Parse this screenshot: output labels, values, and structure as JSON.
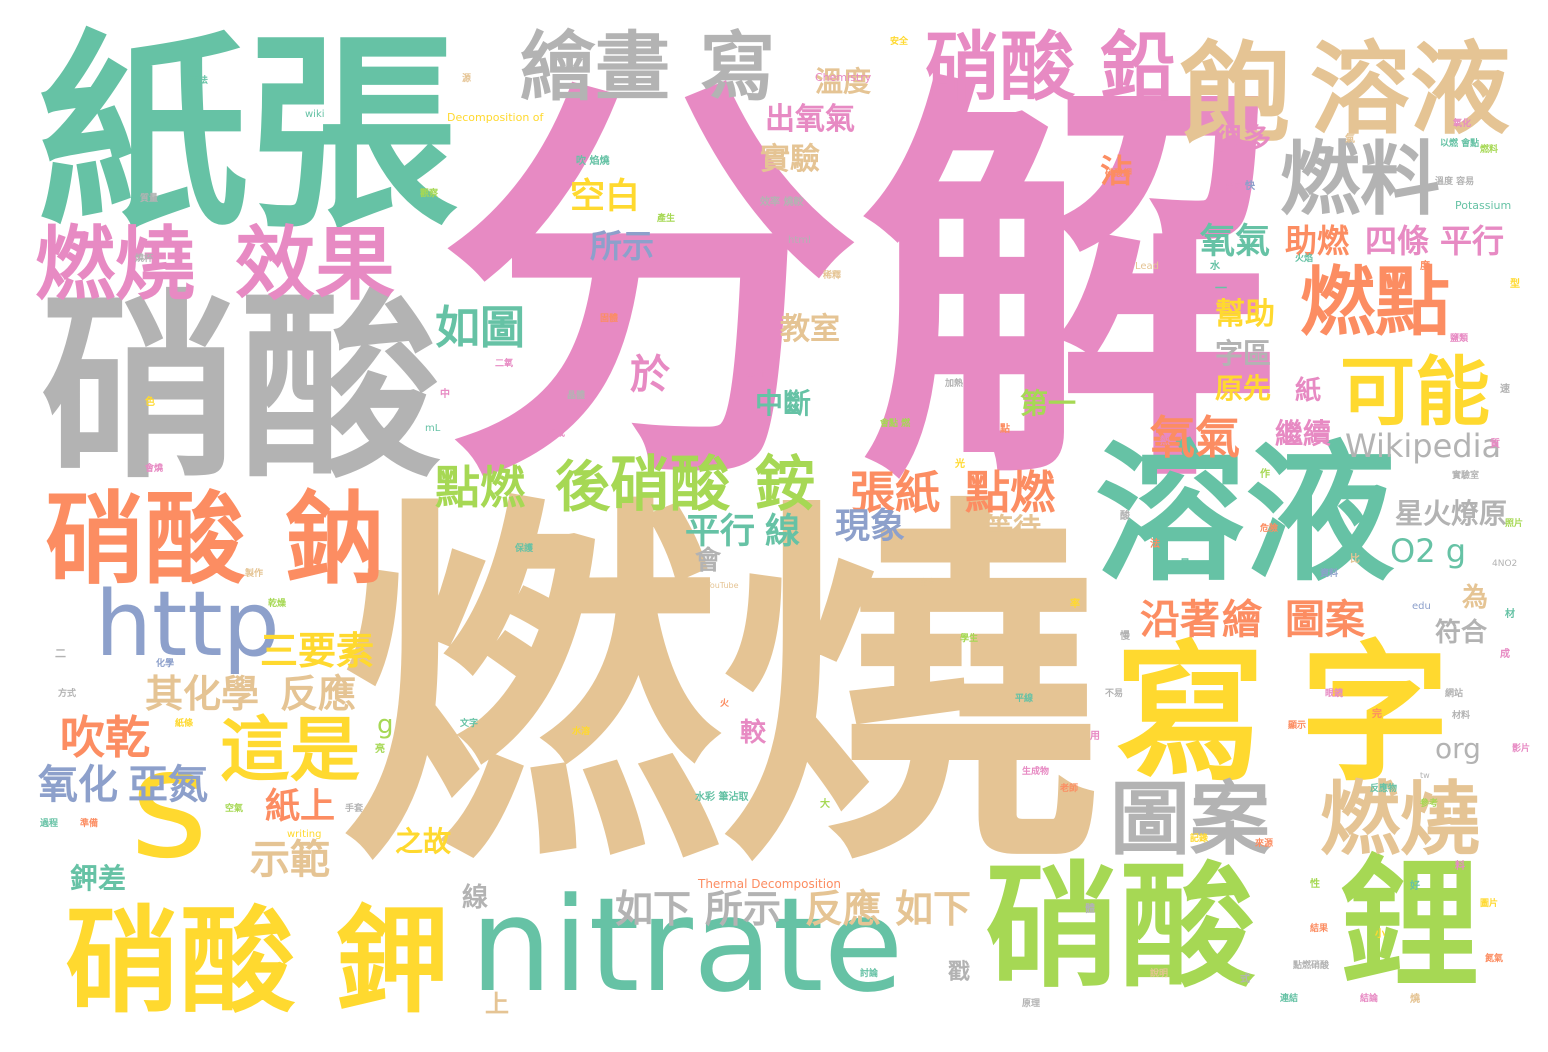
{
  "palette": {
    "pink": "#e78ac3",
    "tan": "#e5c494",
    "green": "#66c2a5",
    "gray": "#b3b3b3",
    "orange": "#fc8d62",
    "yellow": "#ffd92f",
    "lime": "#a6d854",
    "blue": "#8da0cb"
  },
  "words": [
    {
      "text": "分解",
      "color": "#e78ac3"
    },
    {
      "text": "燃燒",
      "color": "#e5c494"
    },
    {
      "text": "紙張",
      "color": "#66c2a5"
    },
    {
      "text": "硝酸",
      "color": "#b3b3b3"
    },
    {
      "text": "溶液",
      "color": "#66c2a5"
    },
    {
      "text": "寫",
      "color": "#ffd92f"
    },
    {
      "text": "字",
      "color": "#ffd92f"
    },
    {
      "text": "nitrate",
      "color": "#66c2a5"
    },
    {
      "text": "硝酸",
      "color": "#a6d854"
    },
    {
      "text": "鋰",
      "color": "#a6d854"
    },
    {
      "text": "硝酸",
      "color": "#ffd92f"
    },
    {
      "text": "鉀",
      "color": "#ffd92f"
    },
    {
      "text": "硝酸",
      "color": "#fc8d62"
    },
    {
      "text": "鈉",
      "color": "#fc8d62"
    },
    {
      "text": "s",
      "color": "#ffd92f"
    },
    {
      "text": "http",
      "color": "#8da0cb"
    },
    {
      "text": "燃燒",
      "color": "#e78ac3"
    },
    {
      "text": "效果",
      "color": "#e78ac3"
    },
    {
      "text": "繪畫",
      "color": "#b3b3b3"
    },
    {
      "text": "寫",
      "color": "#b3b3b3"
    },
    {
      "text": "硝酸",
      "color": "#e78ac3"
    },
    {
      "text": "鉛",
      "color": "#e78ac3"
    },
    {
      "text": "飽",
      "color": "#e5c494"
    },
    {
      "text": "溶液",
      "color": "#e5c494"
    },
    {
      "text": "燃料",
      "color": "#b3b3b3"
    },
    {
      "text": "燃點",
      "color": "#fc8d62"
    },
    {
      "text": "可能",
      "color": "#ffd92f"
    },
    {
      "text": "圖案",
      "color": "#b3b3b3"
    },
    {
      "text": "燃燒",
      "color": "#e5c494"
    },
    {
      "text": "這是",
      "color": "#ffd92f"
    },
    {
      "text": "後",
      "color": "#a6d854"
    },
    {
      "text": "硝酸",
      "color": "#a6d854"
    },
    {
      "text": "銨",
      "color": "#a6d854"
    },
    {
      "text": "點燃",
      "color": "#a6d854"
    },
    {
      "text": "張紙",
      "color": "#fc8d62"
    },
    {
      "text": "點燃",
      "color": "#fc8d62"
    },
    {
      "text": "沿著",
      "color": "#fc8d62"
    },
    {
      "text": "繪",
      "color": "#fc8d62"
    },
    {
      "text": "圖案",
      "color": "#fc8d62"
    },
    {
      "text": "氧氣",
      "color": "#fc8d62"
    },
    {
      "text": "如圖",
      "color": "#66c2a5"
    },
    {
      "text": "於",
      "color": "#e78ac3"
    },
    {
      "text": "吹乾",
      "color": "#fc8d62"
    },
    {
      "text": "氧化",
      "color": "#8da0cb"
    },
    {
      "text": "亞氮",
      "color": "#8da0cb"
    },
    {
      "text": "三要素",
      "color": "#ffd92f"
    },
    {
      "text": "其化學",
      "color": "#e5c494"
    },
    {
      "text": "反應",
      "color": "#e5c494"
    },
    {
      "text": "示範",
      "color": "#e5c494"
    },
    {
      "text": "紙上",
      "color": "#fc8d62"
    },
    {
      "text": "如下",
      "color": "#b3b3b3"
    },
    {
      "text": "所示",
      "color": "#b3b3b3"
    },
    {
      "text": "反應",
      "color": "#e5c494"
    },
    {
      "text": "如下",
      "color": "#e5c494"
    },
    {
      "text": "平行",
      "color": "#66c2a5"
    },
    {
      "text": "線",
      "color": "#66c2a5"
    },
    {
      "text": "現象",
      "color": "#8da0cb"
    },
    {
      "text": "O2 g",
      "color": "#66c2a5"
    },
    {
      "text": "Wikipedia",
      "color": "#b3b3b3"
    },
    {
      "text": "氧氣",
      "color": "#66c2a5"
    },
    {
      "text": "助燃",
      "color": "#fc8d62"
    },
    {
      "text": "四條",
      "color": "#e78ac3"
    },
    {
      "text": "平行",
      "color": "#e78ac3"
    },
    {
      "text": "空白",
      "color": "#ffd92f"
    },
    {
      "text": "所示",
      "color": "#8da0cb"
    },
    {
      "text": "實驗",
      "color": "#e5c494"
    },
    {
      "text": "出氧氣",
      "color": "#e78ac3"
    },
    {
      "text": "溫度",
      "color": "#e5c494"
    },
    {
      "text": "沾",
      "color": "#fc8d62"
    },
    {
      "text": "幫助",
      "color": "#ffd92f"
    },
    {
      "text": "教室",
      "color": "#e5c494"
    },
    {
      "text": "中斷",
      "color": "#66c2a5"
    },
    {
      "text": "第一",
      "color": "#a6d854"
    },
    {
      "text": "繼續",
      "color": "#e78ac3"
    },
    {
      "text": "原先",
      "color": "#ffd92f"
    },
    {
      "text": "字區",
      "color": "#b3b3b3"
    },
    {
      "text": "很多",
      "color": "#e78ac3"
    },
    {
      "text": "等待",
      "color": "#e5c494"
    },
    {
      "text": "星火燎原",
      "color": "#b3b3b3"
    },
    {
      "text": "符合",
      "color": "#b3b3b3"
    },
    {
      "text": "之故",
      "color": "#ffd92f"
    },
    {
      "text": "鉀差",
      "color": "#66c2a5"
    },
    {
      "text": "org",
      "color": "#b3b3b3"
    },
    {
      "text": "為",
      "color": "#e5c494"
    },
    {
      "text": "會",
      "color": "#b3b3b3"
    },
    {
      "text": "紙",
      "color": "#e78ac3"
    },
    {
      "text": "較",
      "color": "#e78ac3"
    },
    {
      "text": "線",
      "color": "#b3b3b3"
    },
    {
      "text": "戳",
      "color": "#b3b3b3"
    },
    {
      "text": "上",
      "color": "#e5c494"
    },
    {
      "text": "g",
      "color": "#a6d854"
    },
    {
      "text": "Chemistry",
      "color": "#e78ac3"
    },
    {
      "text": "Decomposition of",
      "color": "#ffd92f"
    },
    {
      "text": "Thermal Decomposition",
      "color": "#fc8d62"
    },
    {
      "text": "Potassium",
      "color": "#66c2a5"
    },
    {
      "text": "Lead",
      "color": "#e5c494"
    },
    {
      "text": "Classic",
      "color": "#e78ac3"
    },
    {
      "text": "html",
      "color": "#b3b3b3"
    },
    {
      "text": "wiki",
      "color": "#66c2a5"
    },
    {
      "text": "writing",
      "color": "#ffd92f"
    },
    {
      "text": "edu",
      "color": "#8da0cb"
    },
    {
      "text": "YouTube",
      "color": "#e5c494"
    },
    {
      "text": "mL",
      "color": "#66c2a5"
    },
    {
      "text": "tw",
      "color": "#b3b3b3"
    },
    {
      "text": "4NO2",
      "color": "#b3b3b3"
    },
    {
      "text": "效率 燒較",
      "color": "#b3b3b3"
    },
    {
      "text": "吹 焰燒",
      "color": "#66c2a5"
    },
    {
      "text": "水彩 筆沾取",
      "color": "#66c2a5"
    },
    {
      "text": "以燃 會點",
      "color": "#66c2a5"
    },
    {
      "text": "點燃硝酸",
      "color": "#b3b3b3"
    },
    {
      "text": "會點 燃",
      "color": "#a6d854"
    },
    {
      "text": "溫度 容易",
      "color": "#b3b3b3"
    },
    {
      "text": "硝酸鉀",
      "color": "#fc8d62"
    },
    {
      "text": "氧化",
      "color": "#e78ac3"
    },
    {
      "text": "燃料",
      "color": "#a6d854"
    },
    {
      "text": "二氧",
      "color": "#e78ac3"
    },
    {
      "text": "火",
      "color": "#fc8d62"
    },
    {
      "text": "加熱",
      "color": "#b3b3b3"
    },
    {
      "text": "會燒",
      "color": "#e78ac3"
    },
    {
      "text": "火焰",
      "color": "#66c2a5"
    },
    {
      "text": "不易",
      "color": "#b3b3b3"
    },
    {
      "text": "平線",
      "color": "#66c2a5"
    },
    {
      "text": "生成",
      "color": "#e78ac3"
    },
    {
      "text": "紙條",
      "color": "#ffd92f"
    },
    {
      "text": "固體",
      "color": "#fc8d62"
    },
    {
      "text": "產生",
      "color": "#a6d854"
    },
    {
      "text": "化學",
      "color": "#8da0cb"
    },
    {
      "text": "晶體",
      "color": "#b3b3b3"
    },
    {
      "text": "稀釋",
      "color": "#e5c494"
    },
    {
      "text": "鹽類",
      "color": "#e78ac3"
    },
    {
      "text": "文字",
      "color": "#66c2a5"
    },
    {
      "text": "乾燥",
      "color": "#a6d854"
    },
    {
      "text": "燒杯",
      "color": "#b3b3b3"
    },
    {
      "text": "水溶",
      "color": "#ffd92f"
    },
    {
      "text": "顯示",
      "color": "#fc8d62"
    },
    {
      "text": "方法",
      "color": "#66c2a5"
    },
    {
      "text": "步驟",
      "color": "#e78ac3"
    },
    {
      "text": "材料",
      "color": "#b3b3b3"
    },
    {
      "text": "學生",
      "color": "#a6d854"
    },
    {
      "text": "老師",
      "color": "#fc8d62"
    },
    {
      "text": "一",
      "color": "#66c2a5"
    },
    {
      "text": "二",
      "color": "#b3b3b3"
    },
    {
      "text": "中",
      "color": "#e78ac3"
    },
    {
      "text": "小",
      "color": "#ffd92f"
    },
    {
      "text": "大",
      "color": "#a6d854"
    },
    {
      "text": "點",
      "color": "#fc8d62"
    },
    {
      "text": "燒",
      "color": "#e5c494"
    },
    {
      "text": "酸",
      "color": "#b3b3b3"
    },
    {
      "text": "水",
      "color": "#66c2a5"
    },
    {
      "text": "熱",
      "color": "#e78ac3"
    },
    {
      "text": "光",
      "color": "#ffd92f"
    },
    {
      "text": "亮",
      "color": "#a6d854"
    },
    {
      "text": "快",
      "color": "#8da0cb"
    },
    {
      "text": "慢",
      "color": "#b3b3b3"
    },
    {
      "text": "完",
      "color": "#fc8d62"
    },
    {
      "text": "成",
      "color": "#e78ac3"
    },
    {
      "text": "好",
      "color": "#66c2a5"
    },
    {
      "text": "色",
      "color": "#ffd92f"
    },
    {
      "text": "氣",
      "color": "#e5c494"
    },
    {
      "text": "體",
      "color": "#b3b3b3"
    },
    {
      "text": "性",
      "color": "#a6d854"
    },
    {
      "text": "質",
      "color": "#e78ac3"
    },
    {
      "text": "量",
      "color": "#66c2a5"
    },
    {
      "text": "度",
      "color": "#fc8d62"
    },
    {
      "text": "速",
      "color": "#b3b3b3"
    },
    {
      "text": "率",
      "color": "#ffd92f"
    },
    {
      "text": "比",
      "color": "#e5c494"
    },
    {
      "text": "例",
      "color": "#66c2a5"
    },
    {
      "text": "用",
      "color": "#e78ac3"
    },
    {
      "text": "作",
      "color": "#a6d854"
    },
    {
      "text": "法",
      "color": "#fc8d62"
    },
    {
      "text": "式",
      "color": "#b3b3b3"
    },
    {
      "text": "型",
      "color": "#ffd92f"
    },
    {
      "text": "材",
      "color": "#66c2a5"
    },
    {
      "text": "料",
      "color": "#e78ac3"
    },
    {
      "text": "源",
      "color": "#e5c494"
    },
    {
      "text": "質量",
      "color": "#b3b3b3"
    },
    {
      "text": "反應物",
      "color": "#66c2a5"
    },
    {
      "text": "生成物",
      "color": "#e78ac3"
    },
    {
      "text": "氮氣",
      "color": "#fc8d62"
    },
    {
      "text": "空氣",
      "color": "#a6d854"
    },
    {
      "text": "實驗室",
      "color": "#b3b3b3"
    },
    {
      "text": "安全",
      "color": "#ffd92f"
    },
    {
      "text": "注意",
      "color": "#e5c494"
    },
    {
      "text": "危險",
      "color": "#fc8d62"
    },
    {
      "text": "保護",
      "color": "#66c2a5"
    },
    {
      "text": "眼鏡",
      "color": "#e78ac3"
    },
    {
      "text": "手套",
      "color": "#b3b3b3"
    },
    {
      "text": "觀察",
      "color": "#a6d854"
    },
    {
      "text": "記錄",
      "color": "#ffd92f"
    },
    {
      "text": "結果",
      "color": "#fc8d62"
    },
    {
      "text": "討論",
      "color": "#66c2a5"
    },
    {
      "text": "結論",
      "color": "#e78ac3"
    },
    {
      "text": "原理",
      "color": "#b3b3b3"
    },
    {
      "text": "說明",
      "color": "#e5c494"
    },
    {
      "text": "參考",
      "color": "#a6d854"
    },
    {
      "text": "資料",
      "color": "#8da0cb"
    },
    {
      "text": "來源",
      "color": "#fc8d62"
    },
    {
      "text": "網站",
      "color": "#b3b3b3"
    },
    {
      "text": "連結",
      "color": "#66c2a5"
    },
    {
      "text": "影片",
      "color": "#e78ac3"
    },
    {
      "text": "圖片",
      "color": "#ffd92f"
    },
    {
      "text": "照片",
      "color": "#a6d854"
    },
    {
      "text": "方式",
      "color": "#b3b3b3"
    },
    {
      "text": "製作",
      "color": "#e5c494"
    },
    {
      "text": "準備",
      "color": "#fc8d62"
    },
    {
      "text": "過程",
      "color": "#66c2a5"
    }
  ]
}
